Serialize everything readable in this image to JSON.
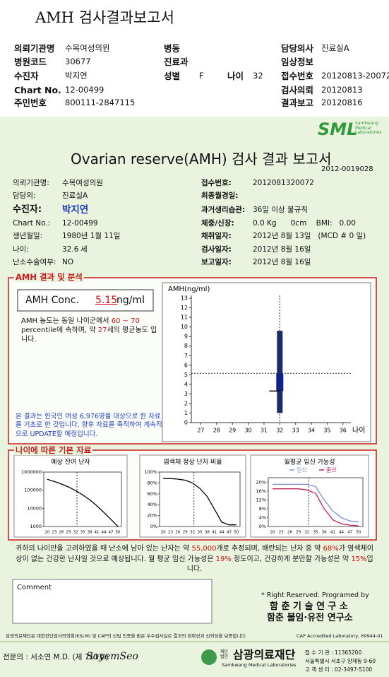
{
  "header": {
    "title": "AMH 검사결과보고서",
    "fields": [
      [
        "의뢰기관명",
        "수목여성의원"
      ],
      [
        "병원코드",
        "30677"
      ],
      [
        "수진자",
        "박지연"
      ],
      [
        "Chart No.",
        "12-00499"
      ],
      [
        "주민번호",
        "800111-2847115"
      ],
      [
        "병동"
      ],
      [
        "진료과"
      ],
      [
        "성별",
        "F"
      ],
      [
        "나이",
        32
      ],
      [
        "담당의사",
        "진료실A"
      ],
      [
        "임상정보"
      ],
      [
        "접수번호",
        "20120813-20072"
      ],
      [
        "검사의뢰",
        "20120813"
      ],
      [
        "결과보고",
        "20120816"
      ]
    ]
  },
  "report": {
    "logo": "SML",
    "logo_sub": "Samkwang Medical Laboratories",
    "title": "Ovarian reserve(AMH) 검사 결과 보고서",
    "number": "2012-0019028",
    "left": [
      [
        "의뢰기관명:",
        "수목여성의원"
      ],
      [
        "담당의:",
        "진료실A"
      ],
      [
        "수진자:",
        "박지연"
      ],
      [
        "Chart No.:",
        "12-00499"
      ],
      [
        "생년월일:",
        "1980년 1월 11일"
      ],
      [
        "나이:",
        32.6
      ],
      [
        "난소수술여부:",
        "NO"
      ]
    ],
    "age_unit": "세",
    "right": [
      [
        "접수번호:",
        "2012081320072"
      ],
      [
        "최종월경일:"
      ],
      [
        "과거생리습관:",
        "36일 이상 불규칙"
      ],
      [
        "체중/신장:",
        "0.0 Kg      0cm    BMI:   0.00"
      ],
      [
        "채취일자:",
        "2012년 8월 13일   (MCD # 0 일)"
      ],
      [
        "검사일자:",
        "2012년 8월 16일"
      ],
      [
        "보고일자:",
        "2012년 8월 16일"
      ]
    ]
  },
  "amh": {
    "heading": "AMH 결과 및 분석",
    "label": "AMH Conc.",
    "value": 5.15,
    "unit": "ng/ml",
    "text": [
      {
        "text": "AMH 농도는 동일 나이군에서 "
      },
      {
        "text": "60 ~ 70",
        "hl": true
      },
      {
        "text": " percentile에 속하며, 약 "
      },
      {
        "text": "27",
        "hl": true
      },
      {
        "text": "세의 평균농도 입니다."
      }
    ],
    "note": "본 결과는 한국인 여성 6,976명을 대상으로 한 자료를 기초로 한 것입니다. 향후 자료를 축적하여 계속적으로 UPDATE할 예정입니다."
  },
  "amh_chart": {
    "ylabel": "AMH(ng/ml)",
    "xlabel": "나이",
    "ylim": [
      0,
      13.3
    ],
    "yticks": [
      0,
      1,
      2,
      3,
      4,
      5,
      6,
      7,
      8,
      9,
      10,
      11,
      12,
      13
    ],
    "xlim": [
      26.4,
      36.5
    ],
    "xticks": [
      27,
      28,
      29,
      30,
      31,
      32,
      33,
      34,
      35,
      36
    ],
    "x": 32,
    "range": [
      1,
      9.6
    ],
    "box": [
      3.3,
      5.1
    ],
    "color": "#1c2a66"
  },
  "basic": {
    "heading": "나이에 따른 기본 자료",
    "age": 32.6,
    "charts": [
      {
        "title": "예상 잔여 난자",
        "log": true,
        "ylim": [
          1000,
          1000000
        ],
        "yticks": [
          1000,
          10000,
          100000,
          1000000
        ],
        "xlim": [
          18.5,
          51.5
        ],
        "xticks": [
          20,
          23,
          26,
          29,
          32,
          35,
          38,
          41,
          44,
          47,
          50
        ],
        "x": [
          20,
          23,
          26,
          29,
          32,
          35,
          38,
          41,
          44,
          47,
          50
        ],
        "series": [
          {
            "color": "#000000",
            "values": [
              400000,
              300000,
              220000,
              150000,
              95000,
              55000,
              30000,
              14000,
              6000,
              2500,
              1000
            ]
          }
        ]
      },
      {
        "title": "염색체 정상 난자 비율",
        "log": false,
        "ylim": [
          0,
          100
        ],
        "yticks": [
          {
            "value": 0,
            "label": "0%"
          },
          {
            "value": 20,
            "label": "20%"
          },
          {
            "value": 40,
            "label": "40%"
          },
          {
            "value": 60,
            "label": "60%"
          },
          {
            "value": 80,
            "label": "80%"
          },
          {
            "value": 100,
            "label": "100%"
          }
        ],
        "xlim": [
          18.5,
          51.5
        ],
        "xticks": [
          20,
          23,
          26,
          29,
          32,
          35,
          38,
          41,
          44,
          47,
          50
        ],
        "x": [
          20,
          23,
          26,
          29,
          32,
          35,
          38,
          41,
          44,
          47,
          50
        ],
        "series": [
          {
            "color": "#000000",
            "values": [
              88,
              88,
              87,
              85,
              80,
              70,
              55,
              32,
              8,
              3,
              3
            ]
          }
        ]
      },
      {
        "title": "월평균 임신 가능성",
        "log": false,
        "ylim": [
          0,
          22
        ],
        "yticks": [
          {
            "value": 0,
            "label": "0%"
          },
          {
            "value": 4,
            "label": "4%"
          },
          {
            "value": 8,
            "label": "8%"
          },
          {
            "value": 12,
            "label": "12%"
          },
          {
            "value": 16,
            "label": "16%"
          },
          {
            "value": 20,
            "label": "20%"
          }
        ],
        "xlim": [
          18.5,
          51.5
        ],
        "xticks": [
          20,
          23,
          26,
          29,
          32,
          35,
          38,
          41,
          44,
          47,
          50
        ],
        "x": [
          20,
          23,
          26,
          29,
          32,
          35,
          38,
          41,
          44,
          47,
          50
        ],
        "series": [
          {
            "name": "임신",
            "color": "#7f8fd8",
            "values": [
              19,
              19,
              19,
              19,
              19,
              18,
              12,
              7,
              4,
              2.5,
              2
            ]
          },
          {
            "name": "출산",
            "color": "#c02060",
            "values": [
              17,
              17,
              17,
              17,
              16.5,
              15,
              8,
              3,
              1.2,
              0.6,
              0.3
            ]
          }
        ]
      }
    ],
    "summary": [
      {
        "text": "귀하의 나이만을 고려하였을 때 난소에 남아 있는 난자는 약 "
      },
      {
        "text": "55,000",
        "hl": true
      },
      {
        "text": "개로 추정되며, 배란되는 난자 중 약 "
      },
      {
        "text": "68%",
        "hl": true
      },
      {
        "text": "가 염색체이상이 없는 건강한 난자일 것으로 예상됩니다. 월 평균 임신 가능성은 "
      },
      {
        "text": "19%",
        "hl": true
      },
      {
        "text": " 정도이고, 건강하게 분만할 가능성은 약 "
      },
      {
        "text": "15%",
        "hl": true
      },
      {
        "text": "입니다."
      }
    ]
  },
  "comment": {
    "label": "Comment"
  },
  "credits": [
    "* Right Reserved. Programed by",
    "함 춘 기 술 연 구 소",
    "함춘 불임·유전 연구소"
  ],
  "footer": {
    "cert": "삼광의료재단은 대한진단검사의학회(KSLM) 및 CAP의 신임 인증을 받은 우수검사실로 결과의 정확성과 신뢰성을 보증합니다.",
    "cap": "CAP Accredited Laboratory, 69944-01",
    "doctor": "전문의 : 서소연 M.D. (제 711호)",
    "signature": "SoyemSeo",
    "org_prefix": "재단법인",
    "org": "삼광의료재단",
    "org_en": "Samkwang Medical Laboratories",
    "contacts": [
      "접 수 기 관 : 11365200",
      "서울특별시 서초구 양재동 9-60",
      "고 객 센 터 : 02-3497-5100"
    ]
  }
}
